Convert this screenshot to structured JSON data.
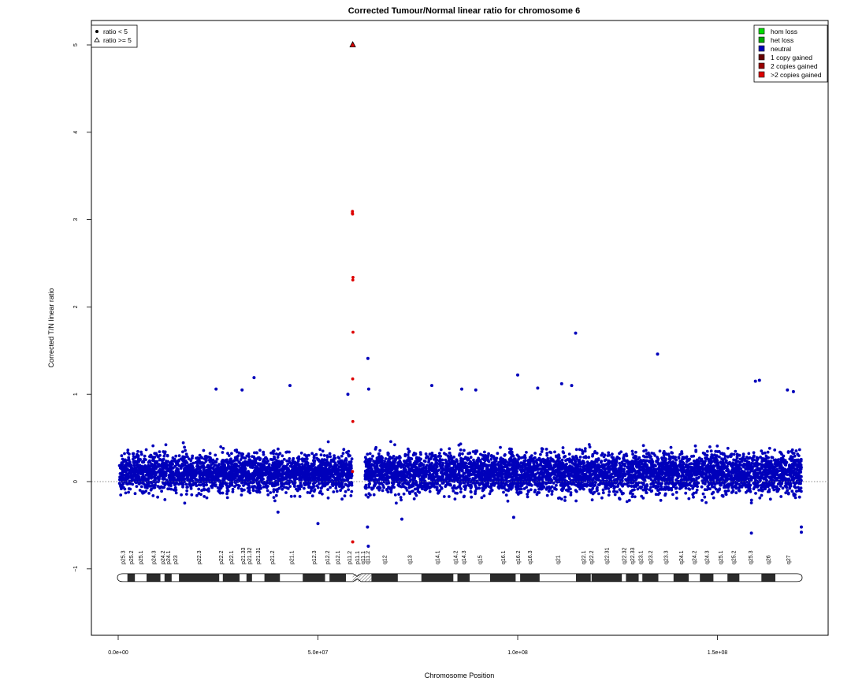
{
  "chart_data": {
    "type": "scatter",
    "title": "Corrected Tumour/Normal linear ratio for chromosome  6",
    "xlabel": "Chromosome Position",
    "ylabel": "Corrected T/N linear ratio",
    "xlim": [
      0,
      171000000
    ],
    "ylim": [
      -1.8,
      5.3
    ],
    "x_ticks": [
      0,
      50000000,
      100000000,
      150000000
    ],
    "x_tick_labels": [
      "0.0e+00",
      "5.0e+07",
      "1.0e+08",
      "1.5e+08"
    ],
    "y_ticks": [
      -1,
      0,
      1,
      2,
      3,
      4,
      5
    ],
    "y_tick_labels": [
      "−1",
      "0",
      "1",
      "2",
      "3",
      "4",
      "5"
    ],
    "reference_line": 0,
    "marker_legend": {
      "entries": [
        {
          "label": "ratio < 5",
          "marker": "filled-circle"
        },
        {
          "label": "ratio >= 5",
          "marker": "open-triangle"
        }
      ],
      "position": "top-left"
    },
    "legend": {
      "entries": [
        {
          "label": "hom loss",
          "color": "#00dd00"
        },
        {
          "label": "het loss",
          "color": "#00aa00"
        },
        {
          "label": "neutral",
          "color": "#0000bb"
        },
        {
          "label": "1 copy gained",
          "color": "#660000"
        },
        {
          "label": "2 copies gained",
          "color": "#990000"
        },
        {
          "label": ">2 copies gained",
          "color": "#dd0000"
        }
      ],
      "position": "top-right"
    },
    "series": [
      {
        "name": "neutral",
        "color": "#0000bb",
        "segments": [
          {
            "x_range": [
              300000,
              58500000
            ],
            "center": 0.1,
            "spread": [
              -0.35,
              0.6
            ]
          },
          {
            "x_range": [
              61800000,
              171000000
            ],
            "center": 0.1,
            "spread": [
              -0.35,
              0.65
            ]
          }
        ],
        "outliers": [
          {
            "x": 24500000,
            "y": 1.06
          },
          {
            "x": 31000000,
            "y": 1.05
          },
          {
            "x": 34000000,
            "y": 1.19
          },
          {
            "x": 43000000,
            "y": 1.1
          },
          {
            "x": 57500000,
            "y": 1.0
          },
          {
            "x": 62500000,
            "y": 1.41
          },
          {
            "x": 62700000,
            "y": 1.06
          },
          {
            "x": 78500000,
            "y": 1.1
          },
          {
            "x": 86000000,
            "y": 1.06
          },
          {
            "x": 89500000,
            "y": 1.05
          },
          {
            "x": 100000000,
            "y": 1.22
          },
          {
            "x": 105000000,
            "y": 1.07
          },
          {
            "x": 111000000,
            "y": 1.12
          },
          {
            "x": 113500000,
            "y": 1.1
          },
          {
            "x": 114500000,
            "y": 1.7
          },
          {
            "x": 135000000,
            "y": 1.46
          },
          {
            "x": 159500000,
            "y": 1.15
          },
          {
            "x": 160500000,
            "y": 1.16
          },
          {
            "x": 167500000,
            "y": 1.05
          },
          {
            "x": 169000000,
            "y": 1.03
          },
          {
            "x": 40000000,
            "y": -0.35
          },
          {
            "x": 50000000,
            "y": -0.48
          },
          {
            "x": 62400000,
            "y": -0.52
          },
          {
            "x": 62600000,
            "y": -0.74
          },
          {
            "x": 71000000,
            "y": -0.43
          },
          {
            "x": 99000000,
            "y": -0.41
          },
          {
            "x": 158500000,
            "y": -0.59
          },
          {
            "x": 171000000,
            "y": -0.52
          },
          {
            "x": 171000000,
            "y": -0.58
          }
        ]
      },
      {
        "name": ">2 copies gained",
        "color": "#dd0000",
        "segments": [
          {
            "x_range": [
              58600000,
              58800000
            ],
            "center": 2.0,
            "spread": [
              -0.5,
              4.8
            ]
          }
        ],
        "outliers": [
          {
            "x": 58700000,
            "y": -0.69
          }
        ]
      },
      {
        "name": "ratio >= 5",
        "color": "#dd0000",
        "marker": "triangle",
        "points": [
          {
            "x": 58700000,
            "y": 5.0
          }
        ]
      }
    ],
    "ideogram": {
      "y": -1.1,
      "centromere": 59800000,
      "bands": [
        {
          "name": "p25.3",
          "start": 0,
          "end": 2300000,
          "stain": "white"
        },
        {
          "name": "p25.2",
          "start": 2300000,
          "end": 4200000,
          "stain": "dark"
        },
        {
          "name": "p25.1",
          "start": 4200000,
          "end": 7100000,
          "stain": "white"
        },
        {
          "name": "p24.3",
          "start": 7100000,
          "end": 10600000,
          "stain": "dark"
        },
        {
          "name": "p24.2",
          "start": 10600000,
          "end": 11600000,
          "stain": "white"
        },
        {
          "name": "p24.1",
          "start": 11600000,
          "end": 13400000,
          "stain": "dark"
        },
        {
          "name": "p23",
          "start": 13400000,
          "end": 15200000,
          "stain": "white"
        },
        {
          "name": "p22.3",
          "start": 15200000,
          "end": 25300000,
          "stain": "dark"
        },
        {
          "name": "p22.2",
          "start": 25300000,
          "end": 26200000,
          "stain": "white"
        },
        {
          "name": "p22.1",
          "start": 26200000,
          "end": 30400000,
          "stain": "dark"
        },
        {
          "name": "p21.33",
          "start": 30400000,
          "end": 32100000,
          "stain": "white"
        },
        {
          "name": "p21.32",
          "start": 32100000,
          "end": 33500000,
          "stain": "dark"
        },
        {
          "name": "p21.31",
          "start": 33500000,
          "end": 36600000,
          "stain": "white"
        },
        {
          "name": "p21.2",
          "start": 36600000,
          "end": 40500000,
          "stain": "dark"
        },
        {
          "name": "p21.1",
          "start": 40500000,
          "end": 46200000,
          "stain": "white"
        },
        {
          "name": "p12.3",
          "start": 46200000,
          "end": 51800000,
          "stain": "dark"
        },
        {
          "name": "p12.2",
          "start": 51800000,
          "end": 52900000,
          "stain": "white"
        },
        {
          "name": "p12.1",
          "start": 52900000,
          "end": 57000000,
          "stain": "dark"
        },
        {
          "name": "p11.2",
          "start": 57000000,
          "end": 58700000,
          "stain": "white"
        },
        {
          "name": "p11.1",
          "start": 58700000,
          "end": 61000000,
          "stain": "stalk"
        },
        {
          "name": "q11.1",
          "start": 61000000,
          "end": 61500000,
          "stain": "stalk"
        },
        {
          "name": "q11.2",
          "start": 61500000,
          "end": 63400000,
          "stain": "stalk"
        },
        {
          "name": "q12",
          "start": 63400000,
          "end": 70000000,
          "stain": "dark"
        },
        {
          "name": "q13",
          "start": 70000000,
          "end": 75900000,
          "stain": "white"
        },
        {
          "name": "q14.1",
          "start": 75900000,
          "end": 83900000,
          "stain": "dark"
        },
        {
          "name": "q14.2",
          "start": 83900000,
          "end": 84900000,
          "stain": "white"
        },
        {
          "name": "q14.3",
          "start": 84900000,
          "end": 88000000,
          "stain": "dark"
        },
        {
          "name": "q15",
          "start": 88000000,
          "end": 93100000,
          "stain": "white"
        },
        {
          "name": "q16.1",
          "start": 93100000,
          "end": 99500000,
          "stain": "dark"
        },
        {
          "name": "q16.2",
          "start": 99500000,
          "end": 100600000,
          "stain": "white"
        },
        {
          "name": "q16.3",
          "start": 100600000,
          "end": 105500000,
          "stain": "dark"
        },
        {
          "name": "q21",
          "start": 105500000,
          "end": 114600000,
          "stain": "white"
        },
        {
          "name": "q22.1",
          "start": 114600000,
          "end": 118300000,
          "stain": "dark"
        },
        {
          "name": "q22.2",
          "start": 118300000,
          "end": 118500000,
          "stain": "white"
        },
        {
          "name": "q22.31",
          "start": 118500000,
          "end": 126100000,
          "stain": "dark"
        },
        {
          "name": "q22.32",
          "start": 126100000,
          "end": 127100000,
          "stain": "white"
        },
        {
          "name": "q22.33",
          "start": 127100000,
          "end": 130300000,
          "stain": "dark"
        },
        {
          "name": "q23.1",
          "start": 130300000,
          "end": 131200000,
          "stain": "white"
        },
        {
          "name": "q23.2",
          "start": 131200000,
          "end": 135200000,
          "stain": "dark"
        },
        {
          "name": "q23.3",
          "start": 135200000,
          "end": 139000000,
          "stain": "white"
        },
        {
          "name": "q24.1",
          "start": 139000000,
          "end": 142800000,
          "stain": "dark"
        },
        {
          "name": "q24.2",
          "start": 142800000,
          "end": 145600000,
          "stain": "white"
        },
        {
          "name": "q24.3",
          "start": 145600000,
          "end": 149000000,
          "stain": "dark"
        },
        {
          "name": "q25.1",
          "start": 149000000,
          "end": 152500000,
          "stain": "white"
        },
        {
          "name": "q25.2",
          "start": 152500000,
          "end": 155500000,
          "stain": "dark"
        },
        {
          "name": "q25.3",
          "start": 155500000,
          "end": 161000000,
          "stain": "white"
        },
        {
          "name": "q26",
          "start": 161000000,
          "end": 164500000,
          "stain": "dark"
        },
        {
          "name": "q27",
          "start": 164500000,
          "end": 171000000,
          "stain": "white"
        }
      ]
    }
  },
  "colors": {
    "neutral": "#0000bb",
    "gain": "#dd0000",
    "dark_band": "#2b2b2b",
    "reference_line": "#666666"
  }
}
